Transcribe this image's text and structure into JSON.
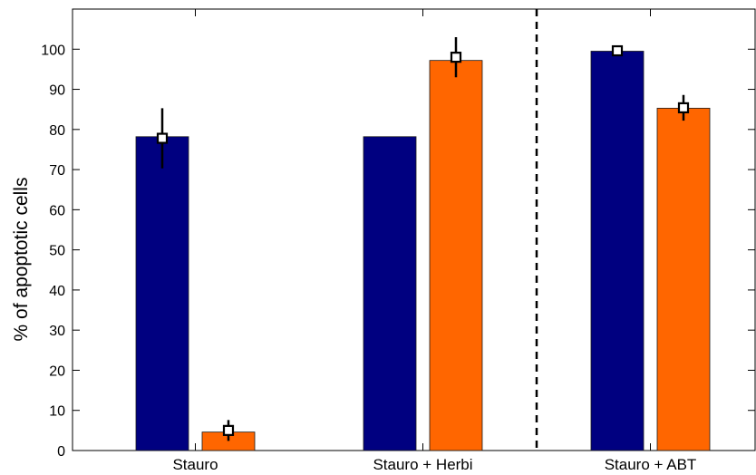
{
  "chart_data": {
    "type": "bar",
    "ylabel": "% of apoptotic cells",
    "ylim": [
      0,
      110
    ],
    "yticks": [
      0,
      10,
      20,
      30,
      40,
      50,
      60,
      70,
      80,
      90,
      100
    ],
    "grid": false,
    "legend": "none",
    "categories": [
      "Stauro",
      "Stauro + Herbi",
      "Stauro + ABT"
    ],
    "separator_between": [
      1,
      2
    ],
    "series": [
      {
        "color": "#000080",
        "values": [
          78.2,
          78.2,
          99.5
        ],
        "markers": [
          77.8,
          null,
          99.6
        ],
        "errors": [
          7.5,
          null,
          0.8
        ]
      },
      {
        "color": "#ff6600",
        "values": [
          4.6,
          97.2,
          85.3
        ],
        "markers": [
          5.0,
          98.0,
          85.4
        ],
        "errors": [
          2.6,
          5.0,
          3.2
        ]
      }
    ]
  }
}
